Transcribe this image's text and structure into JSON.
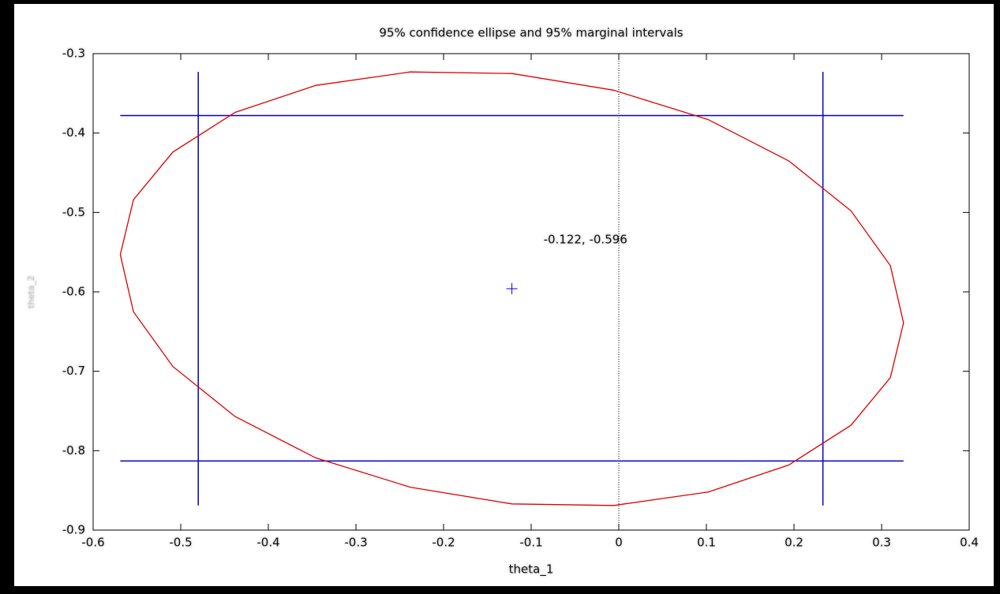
{
  "chart_data": {
    "type": "ellipse",
    "title": "95% confidence ellipse and 95% marginal intervals",
    "x_label": "theta_1",
    "y_label": "theta_2",
    "xlim": [
      -0.6,
      0.4
    ],
    "ylim": [
      -0.9,
      -0.3
    ],
    "xticks": [
      -0.6,
      -0.5,
      -0.4,
      -0.3,
      -0.2,
      -0.1,
      0,
      0.1,
      0.2,
      0.3,
      0.4
    ],
    "yticks": [
      -0.3,
      -0.4,
      -0.5,
      -0.6,
      -0.7,
      -0.8,
      -0.9
    ],
    "zero_line": true,
    "ellipse": {
      "color": "#e00000",
      "x": [
        0.325,
        0.31,
        0.265,
        0.194,
        0.102,
        -0.006,
        -0.122,
        -0.238,
        -0.346,
        -0.438,
        -0.509,
        -0.554,
        -0.569,
        -0.554,
        -0.509,
        -0.438,
        -0.346,
        -0.238,
        -0.122,
        -0.006,
        0.102,
        0.194,
        0.265,
        0.31
      ],
      "y": [
        -0.639,
        -0.708,
        -0.768,
        -0.818,
        -0.852,
        -0.869,
        -0.867,
        -0.846,
        -0.809,
        -0.757,
        -0.694,
        -0.625,
        -0.553,
        -0.484,
        -0.424,
        -0.374,
        -0.34,
        -0.323,
        -0.325,
        -0.346,
        -0.383,
        -0.435,
        -0.498,
        -0.567
      ]
    },
    "intervals": {
      "color": "#0000c8",
      "theta_1": [
        -0.48,
        0.233
      ],
      "theta_2": [
        -0.813,
        -0.378
      ]
    },
    "estimate": {
      "x": -0.122,
      "y": -0.596,
      "label": "-0.122, -0.596",
      "color": "#0000ff"
    }
  }
}
